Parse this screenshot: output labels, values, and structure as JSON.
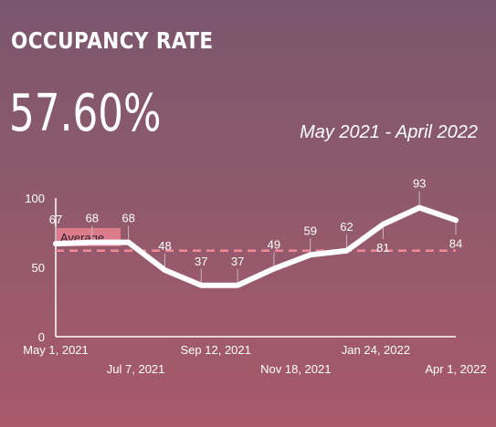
{
  "header": {
    "title": "OCCUPANCY RATE",
    "kpi_value": "57.60%",
    "date_range": "May 2021 - April 2022"
  },
  "chart_data": {
    "type": "line",
    "y_ticks": [
      0,
      50,
      100
    ],
    "ylim": [
      0,
      100
    ],
    "x_tick_labels": [
      "May 1, 2021",
      "Jul 7, 2021",
      "Sep 12, 2021",
      "Nov 18, 2021",
      "Jan 24, 2022",
      "Apr 1, 2022"
    ],
    "series": [
      {
        "values": [
          67,
          68,
          68,
          48,
          37,
          37,
          49,
          59,
          62,
          81,
          93,
          84
        ],
        "data_labels": [
          "67",
          "68",
          "68",
          "48",
          "37",
          "37",
          "49",
          "59",
          "62",
          "81",
          "93",
          "84"
        ]
      }
    ],
    "reference_line": {
      "label": "Average",
      "value": 62
    },
    "colors": {
      "line": "#ffffff",
      "average": "#f08a98",
      "average_label_bg": "#dc7b8c"
    },
    "grid": false
  }
}
